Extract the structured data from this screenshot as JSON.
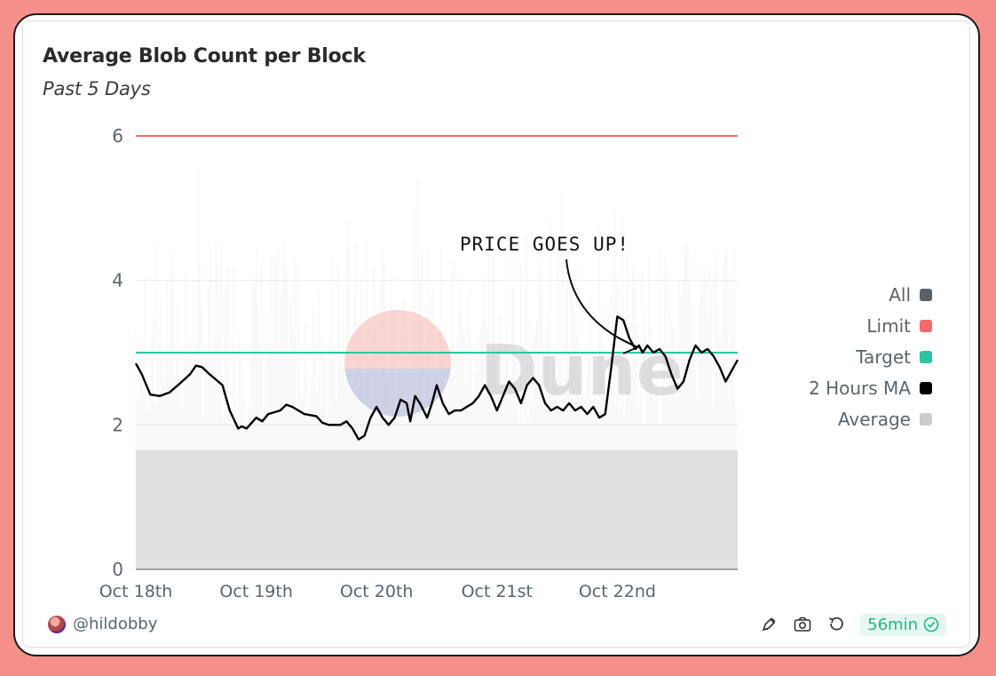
{
  "title": "Average Blob Count per Block",
  "subtitle": "Past 5 Days",
  "annotation": "PRICE GOES UP!",
  "watermark": "Dune",
  "author": "@hildobby",
  "freshness": "56min",
  "toolbar_icons": [
    "edit-icon",
    "camera-icon",
    "refresh-icon"
  ],
  "chart_data": {
    "type": "line",
    "title": "Average Blob Count per Block",
    "subtitle": "Past 5 Days",
    "xlabel": "",
    "ylabel": "",
    "ylim": [
      0,
      6
    ],
    "yticks": [
      "0",
      "2",
      "4",
      "6"
    ],
    "xticks": [
      "Oct 18th",
      "Oct 19th",
      "Oct 20th",
      "Oct 21st",
      "Oct 22nd"
    ],
    "xlim_days": [
      0,
      5
    ],
    "grid": true,
    "legend_position": "right",
    "legend": [
      {
        "name": "All",
        "color": "#5c6068"
      },
      {
        "name": "Limit",
        "color": "#f26b6b"
      },
      {
        "name": "Target",
        "color": "#2ec4a0"
      },
      {
        "name": "2 Hours MA",
        "color": "#000000"
      },
      {
        "name": "Average",
        "color": "#cccccc"
      }
    ],
    "series": [
      {
        "name": "Limit",
        "color": "#f26b6b",
        "constant": 6
      },
      {
        "name": "Target",
        "color": "#2ec4a0",
        "constant": 3
      },
      {
        "name": "2 Hours MA",
        "color": "#000000",
        "x_days": [
          0.0,
          0.05,
          0.12,
          0.2,
          0.28,
          0.35,
          0.45,
          0.5,
          0.55,
          0.6,
          0.65,
          0.72,
          0.78,
          0.85,
          0.88,
          0.92,
          1.0,
          1.05,
          1.1,
          1.2,
          1.25,
          1.3,
          1.4,
          1.5,
          1.55,
          1.6,
          1.7,
          1.75,
          1.8,
          1.85,
          1.9,
          1.95,
          2.0,
          2.05,
          2.1,
          2.15,
          2.2,
          2.25,
          2.28,
          2.32,
          2.36,
          2.42,
          2.46,
          2.5,
          2.55,
          2.6,
          2.65,
          2.7,
          2.75,
          2.8,
          2.85,
          2.9,
          2.95,
          3.0,
          3.05,
          3.1,
          3.15,
          3.2,
          3.25,
          3.3,
          3.35,
          3.4,
          3.45,
          3.5,
          3.55,
          3.6,
          3.65,
          3.7,
          3.75,
          3.8,
          3.85,
          3.9,
          3.95,
          4.0,
          4.05,
          4.1,
          4.15,
          4.18,
          4.21,
          4.25,
          4.3,
          4.35,
          4.4,
          4.45,
          4.5,
          4.55,
          4.6,
          4.65,
          4.7,
          4.75,
          4.8,
          4.85,
          4.9,
          4.95,
          5.0
        ],
        "values": [
          2.85,
          2.7,
          2.42,
          2.4,
          2.45,
          2.55,
          2.7,
          2.82,
          2.8,
          2.72,
          2.65,
          2.55,
          2.2,
          1.95,
          1.98,
          1.95,
          2.1,
          2.05,
          2.15,
          2.2,
          2.28,
          2.25,
          2.15,
          2.12,
          2.03,
          2.0,
          2.0,
          2.05,
          1.95,
          1.8,
          1.85,
          2.1,
          2.25,
          2.1,
          2.0,
          2.1,
          2.35,
          2.3,
          2.05,
          2.4,
          2.3,
          2.1,
          2.3,
          2.55,
          2.3,
          2.15,
          2.2,
          2.2,
          2.25,
          2.3,
          2.4,
          2.55,
          2.4,
          2.2,
          2.4,
          2.6,
          2.5,
          2.3,
          2.55,
          2.65,
          2.55,
          2.3,
          2.2,
          2.25,
          2.2,
          2.3,
          2.2,
          2.25,
          2.15,
          2.25,
          2.1,
          2.15,
          2.8,
          3.5,
          3.45,
          3.2,
          3.05,
          3.1,
          3.0,
          3.1,
          3.0,
          3.05,
          2.95,
          2.7,
          2.5,
          2.6,
          2.9,
          3.1,
          3.0,
          3.05,
          2.95,
          2.8,
          2.6,
          2.75,
          2.9
        ]
      },
      {
        "name": "All",
        "color": "#5c6068",
        "note": "dense per-block bars shown as faint background, range 0 to 6"
      },
      {
        "name": "Average",
        "color": "#cccccc",
        "note": "shown as grey filled area"
      }
    ]
  }
}
